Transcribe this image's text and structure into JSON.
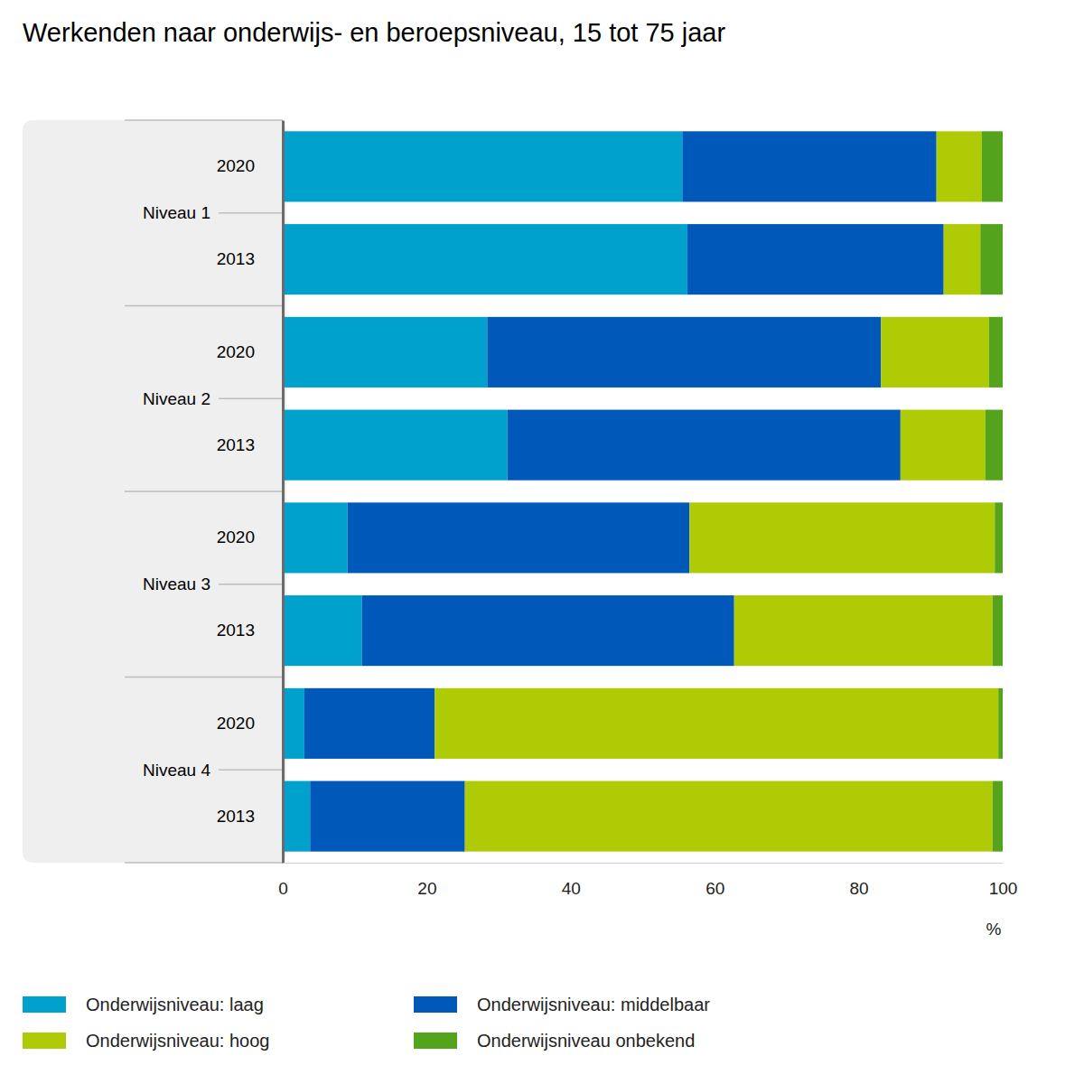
{
  "chart_data": {
    "type": "bar",
    "orientation": "horizontal",
    "stacked": true,
    "grid": false,
    "legend": "bottom",
    "title": "Werkenden naar onderwijs- en beroepsniveau, 15 tot 75 jaar",
    "x_label": "%",
    "groups": [
      "Niveau 1",
      "Niveau 2",
      "Niveau 3",
      "Niveau 4"
    ],
    "categories": [
      "2020",
      "2013",
      "2020",
      "2013",
      "2020",
      "2013",
      "2020",
      "2013"
    ],
    "xlim": [
      0,
      100
    ],
    "xticks": [
      0,
      20,
      40,
      60,
      80,
      100
    ],
    "series": [
      {
        "name": "Onderwijsniveau: laag",
        "color": "#00a1cd",
        "values": [
          55.5,
          56.2,
          28.4,
          31.2,
          9.0,
          11.0,
          3.0,
          3.8
        ]
      },
      {
        "name": "Onderwijsniveau: middelbaar",
        "color": "#0058b8",
        "values": [
          35.3,
          35.6,
          54.7,
          54.6,
          47.5,
          51.7,
          18.1,
          21.5
        ]
      },
      {
        "name": "Onderwijsniveau: hoog",
        "color": "#afcb05",
        "values": [
          6.3,
          5.1,
          15.0,
          11.8,
          42.4,
          35.9,
          78.3,
          73.3
        ]
      },
      {
        "name": "Onderwijsniveau onbekend",
        "color": "#53a31d",
        "values": [
          2.9,
          3.1,
          1.9,
          2.4,
          1.1,
          1.4,
          0.6,
          1.4
        ]
      }
    ]
  }
}
